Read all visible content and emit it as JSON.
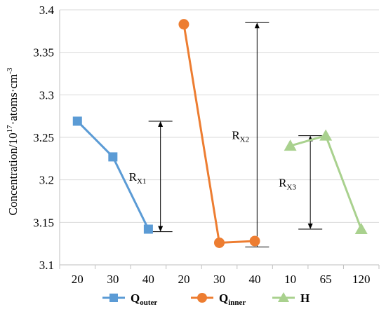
{
  "chart_data": {
    "type": "line",
    "title": "",
    "ylabel": {
      "main": "Concentration/10",
      "sup": "17",
      "rest": "·atoms·cm",
      "sup2": "-3"
    },
    "xlabel": "",
    "ylim": [
      3.1,
      3.4
    ],
    "yticks": [
      3.1,
      3.15,
      3.2,
      3.25,
      3.3,
      3.35,
      3.4
    ],
    "grid": "horizontal",
    "legend_position": "bottom",
    "x_tick_labels": [
      "20",
      "30",
      "40",
      "20",
      "30",
      "40",
      "10",
      "65",
      "120"
    ],
    "series": [
      {
        "name": "Q",
        "sub": "outer",
        "color": "#5b9bd5",
        "marker": "square",
        "x": [
          "20",
          "30",
          "40"
        ],
        "values": [
          3.269,
          3.227,
          3.142
        ]
      },
      {
        "name": "Q",
        "sub": "inner",
        "color": "#ed7d31",
        "marker": "circle",
        "x": [
          "20",
          "30",
          "40"
        ],
        "values": [
          3.383,
          3.126,
          3.128
        ]
      },
      {
        "name": "H",
        "sub": "",
        "color": "#a9d18e",
        "marker": "triangle",
        "x": [
          "10",
          "65",
          "120"
        ],
        "values": [
          3.24,
          3.252,
          3.142
        ]
      }
    ],
    "annotations": [
      {
        "label": "R",
        "sub": "X1",
        "top": 3.269,
        "bottom": 3.139
      },
      {
        "label": "R",
        "sub": "X2",
        "top": 3.385,
        "bottom": 3.121
      },
      {
        "label": "R",
        "sub": "X3",
        "top": 3.252,
        "bottom": 3.142
      }
    ]
  }
}
